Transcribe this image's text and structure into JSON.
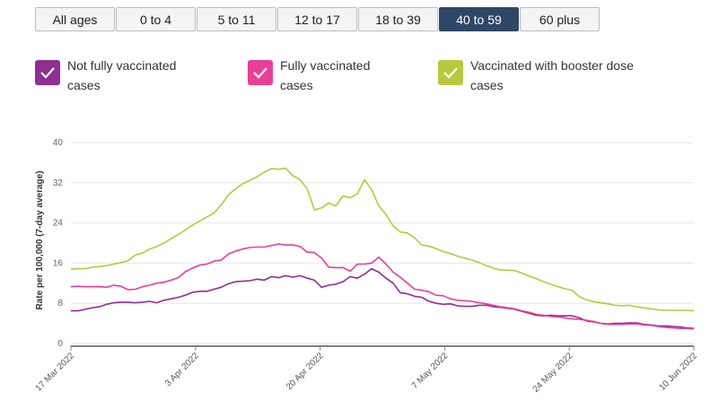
{
  "tabs": [
    {
      "label": "All ages",
      "active": false
    },
    {
      "label": "0 to 4",
      "active": false
    },
    {
      "label": "5 to 11",
      "active": false
    },
    {
      "label": "12 to 17",
      "active": false
    },
    {
      "label": "18 to 39",
      "active": false
    },
    {
      "label": "40 to 59",
      "active": true
    },
    {
      "label": "60 plus",
      "active": false
    }
  ],
  "legend": [
    {
      "line1": "Not fully vaccinated",
      "line2": "cases",
      "color": "#8e2f91",
      "icon": "check-icon"
    },
    {
      "line1": "Fully vaccinated",
      "line2": "cases",
      "color": "#e93e97",
      "icon": "check-icon"
    },
    {
      "line1": "Vaccinated with booster dose",
      "line2": "cases",
      "color": "#b8c93e",
      "icon": "check-icon"
    }
  ],
  "chart_data": {
    "type": "line",
    "ylabel": "Rate per 100,000 (7-day average)",
    "ylim": [
      0,
      40
    ],
    "yticks": [
      "0",
      "8",
      "16",
      "24",
      "32",
      "40"
    ],
    "xticks": [
      "17 Mar 2022",
      "3 Apr 2022",
      "20 Apr 2022",
      "7 May 2022",
      "24 May 2022",
      "10 Jun 2022"
    ],
    "x_start": "2022-03-17",
    "x_end": "2022-06-10",
    "grid": true,
    "series": [
      {
        "name": "Not fully vaccinated cases",
        "color": "#8e2f91",
        "values": [
          6.5,
          6.5,
          6.8,
          7.1,
          7.3,
          7.8,
          8.1,
          8.2,
          8.2,
          8.1,
          8.2,
          8.4,
          8.1,
          8.6,
          8.9,
          9.2,
          9.6,
          10.2,
          10.4,
          10.4,
          10.8,
          11.2,
          11.9,
          12.3,
          12.4,
          12.5,
          12.8,
          12.6,
          13.3,
          13.1,
          13.5,
          13.2,
          13.5,
          13.0,
          12.6,
          11.2,
          11.6,
          11.8,
          12.3,
          13.3,
          13.0,
          13.8,
          14.9,
          14.2,
          13.0,
          12.0,
          10.1,
          9.9,
          9.4,
          9.2,
          8.4,
          8.0,
          7.8,
          7.9,
          7.5,
          7.4,
          7.4,
          7.6,
          7.6,
          7.3,
          7.2,
          7.0,
          6.8,
          6.4,
          6.0,
          5.6,
          5.5,
          5.6,
          5.5,
          5.5,
          5.5,
          5.1,
          4.5,
          4.3,
          4.0,
          3.9,
          4.0,
          4.0,
          4.1,
          4.1,
          3.8,
          3.7,
          3.5,
          3.5,
          3.4,
          3.3,
          3.1,
          3.0
        ]
      },
      {
        "name": "Fully vaccinated cases",
        "color": "#e93e97",
        "values": [
          11.3,
          11.4,
          11.3,
          11.3,
          11.3,
          11.2,
          11.6,
          11.4,
          10.7,
          10.8,
          11.3,
          11.6,
          12.0,
          12.2,
          12.6,
          13.1,
          14.3,
          15.0,
          15.6,
          15.8,
          16.4,
          16.6,
          17.8,
          18.4,
          18.8,
          19.1,
          19.2,
          19.2,
          19.5,
          19.8,
          19.6,
          19.6,
          19.3,
          18.2,
          18.1,
          17.0,
          15.2,
          15.1,
          15.1,
          14.4,
          15.8,
          15.8,
          16.0,
          17.2,
          15.8,
          14.2,
          13.2,
          12.0,
          10.8,
          10.6,
          10.3,
          9.6,
          9.5,
          8.9,
          8.6,
          8.5,
          8.4,
          8.1,
          7.9,
          7.6,
          7.3,
          7.1,
          6.9,
          6.5,
          6.2,
          5.8,
          5.6,
          5.4,
          5.3,
          5.1,
          4.9,
          4.8,
          4.6,
          4.4,
          4.0,
          3.8,
          3.8,
          3.8,
          3.9,
          3.9,
          3.7,
          3.6,
          3.4,
          3.2,
          3.1,
          3.0,
          3.0,
          2.9
        ]
      },
      {
        "name": "Vaccinated with booster dose cases",
        "color": "#b8c93e",
        "values": [
          14.8,
          14.9,
          14.9,
          15.2,
          15.3,
          15.5,
          15.8,
          16.1,
          16.5,
          17.6,
          18.0,
          18.8,
          19.3,
          20.0,
          20.9,
          21.7,
          22.6,
          23.6,
          24.4,
          25.2,
          26.0,
          27.6,
          29.6,
          30.8,
          31.8,
          32.5,
          33.2,
          34.1,
          34.8,
          34.7,
          34.9,
          33.4,
          32.6,
          30.8,
          26.6,
          27.0,
          28.0,
          27.4,
          29.4,
          29.0,
          29.8,
          32.6,
          30.6,
          27.4,
          25.7,
          23.4,
          22.2,
          22.0,
          21.0,
          19.6,
          19.4,
          18.9,
          18.3,
          17.9,
          17.4,
          17.0,
          16.6,
          16.1,
          15.5,
          15.0,
          14.6,
          14.6,
          14.5,
          14.0,
          13.4,
          12.9,
          12.3,
          11.8,
          11.3,
          10.9,
          10.6,
          9.3,
          8.7,
          8.3,
          8.1,
          7.9,
          7.6,
          7.5,
          7.6,
          7.3,
          7.1,
          6.9,
          6.7,
          6.6,
          6.6,
          6.6,
          6.6,
          6.5
        ]
      }
    ]
  }
}
